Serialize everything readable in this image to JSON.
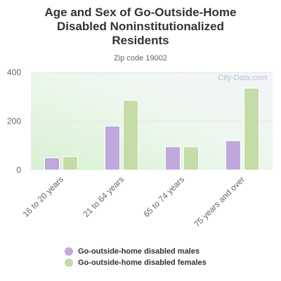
{
  "title_lines": [
    "Age and Sex of Go-Outside-Home",
    "Disabled Noninstitutionalized",
    "Residents"
  ],
  "subtitle": "Zip code 19002",
  "watermark": "City-Data.com",
  "colors": {
    "males": "#bfa8dc",
    "females": "#c5dba8",
    "axis_text": "#666666",
    "title": "#333333"
  },
  "chart_data": {
    "type": "bar",
    "title": "Age and Sex of Go-Outside-Home Disabled Noninstitutionalized Residents",
    "subtitle": "Zip code 19002",
    "categories": [
      "16 to 20 years",
      "21 to 64 years",
      "65 to 74 years",
      "75 years and over"
    ],
    "series": [
      {
        "name": "Go-outside-home disabled males",
        "values": [
          50,
          180,
          95,
          120
        ]
      },
      {
        "name": "Go-outside-home disabled females",
        "values": [
          55,
          285,
          95,
          335
        ]
      }
    ],
    "yticks": [
      0,
      200,
      400
    ],
    "ylim": [
      0,
      400
    ],
    "grid": true,
    "legend_position": "bottom"
  }
}
